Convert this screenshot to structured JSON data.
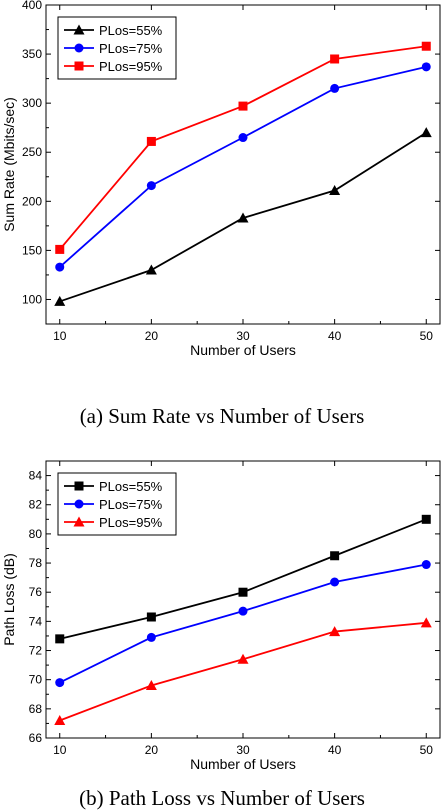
{
  "chart_data": [
    {
      "type": "line",
      "caption": "(a) Sum Rate vs Number of Users",
      "xlabel": "Number of Users",
      "ylabel": "Sum Rate (Mbits/sec)",
      "x": [
        10,
        20,
        30,
        40,
        50
      ],
      "xlim": [
        8.5,
        51.5
      ],
      "ylim": [
        75,
        400
      ],
      "xticks": [
        10,
        20,
        30,
        40,
        50
      ],
      "yticks": [
        100,
        150,
        200,
        250,
        300,
        350,
        400
      ],
      "legend_position": "top-left",
      "grid": false,
      "series": [
        {
          "name": "PLos=55%",
          "color": "#000000",
          "marker": "triangle",
          "values": [
            98,
            130,
            183,
            211,
            270
          ]
        },
        {
          "name": "PLos=75%",
          "color": "#0000ff",
          "marker": "circle",
          "values": [
            133,
            216,
            265,
            315,
            337
          ]
        },
        {
          "name": "PLos=95%",
          "color": "#ff0000",
          "marker": "square",
          "values": [
            151,
            261,
            297,
            345,
            358
          ]
        }
      ]
    },
    {
      "type": "line",
      "caption": "(b) Path Loss vs Number of Users",
      "xlabel": "Number of Users",
      "ylabel": "Path Loss (dB)",
      "x": [
        10,
        20,
        30,
        40,
        50
      ],
      "xlim": [
        8.5,
        51.5
      ],
      "ylim": [
        66,
        85
      ],
      "xticks": [
        10,
        20,
        30,
        40,
        50
      ],
      "yticks": [
        66,
        68,
        70,
        72,
        74,
        76,
        78,
        80,
        82,
        84
      ],
      "legend_position": "top-left",
      "grid": false,
      "series": [
        {
          "name": "PLos=55%",
          "color": "#000000",
          "marker": "square",
          "values": [
            72.8,
            74.3,
            76.0,
            78.5,
            81.0
          ]
        },
        {
          "name": "PLos=75%",
          "color": "#0000ff",
          "marker": "circle",
          "values": [
            69.8,
            72.9,
            74.7,
            76.7,
            77.9
          ]
        },
        {
          "name": "PLos=95%",
          "color": "#ff0000",
          "marker": "triangle",
          "values": [
            67.2,
            69.6,
            71.4,
            73.3,
            73.9
          ]
        }
      ]
    }
  ]
}
